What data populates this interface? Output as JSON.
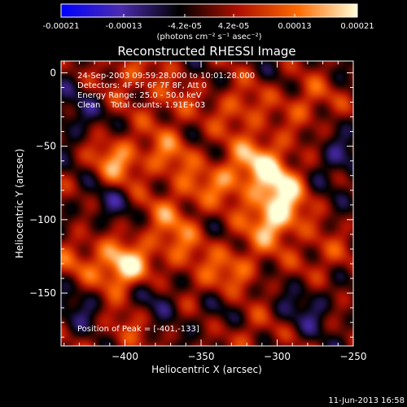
{
  "chart_data": {
    "type": "heatmap",
    "title": "Reconstructed RHESSI Image",
    "xlabel": "Heliocentric X (arcsec)",
    "ylabel": "Heliocentric Y (arcsec)",
    "xlim": [
      -442,
      -250
    ],
    "ylim": [
      -186,
      8
    ],
    "x_ticks": [
      -400,
      -350,
      -300,
      -250
    ],
    "y_ticks": [
      0,
      -50,
      -100,
      -150
    ],
    "annotations": [
      "24-Sep-2003 09:59:28.000 to 10:01:28.000",
      "Detectors: 4F 5F 6F 7F 8F, Att 0",
      "Energy Range: 25.0 - 50.0 keV",
      "Clean    Total counts: 1.91E+03"
    ],
    "peak": {
      "label": "Position of Peak = [-401,-133]",
      "x": -401,
      "y": -133
    },
    "colorbar": {
      "ticks": [
        "-0.00021",
        "-0.00013",
        "-4.2e-05",
        "4.2e-05",
        "0.00013",
        "0.00021"
      ],
      "range": [
        -0.00021,
        0.00021
      ],
      "unit": "(photons cm⁻² s⁻¹ asec⁻²)",
      "colors": [
        "#0000ff",
        "#4b2bb0",
        "#000000",
        "#b01000",
        "#ff6a00",
        "#ffffd8"
      ]
    },
    "sources": [
      {
        "x": -401,
        "y": -133,
        "value": 0.00021
      },
      {
        "x": -302,
        "y": -100,
        "value": 0.00019
      },
      {
        "x": -297,
        "y": -77,
        "value": 0.00016
      },
      {
        "x": -310,
        "y": -57,
        "value": 0.00013
      },
      {
        "x": -405,
        "y": -60,
        "value": 0.00014
      },
      {
        "x": -372,
        "y": -55,
        "value": 0.0001
      },
      {
        "x": -330,
        "y": -72,
        "value": 0.00011
      },
      {
        "x": -365,
        "y": -120,
        "value": 9e-05
      },
      {
        "x": -375,
        "y": -100,
        "value": 8e-05
      },
      {
        "x": -345,
        "y": -145,
        "value": 8e-05
      },
      {
        "x": -355,
        "y": -80,
        "value": 7e-05
      },
      {
        "x": -325,
        "y": -130,
        "value": 9e-05
      },
      {
        "x": -430,
        "y": -125,
        "value": 8e-05
      },
      {
        "x": -325,
        "y": -25,
        "value": 0.0001
      },
      {
        "x": -395,
        "y": 0,
        "value": 8e-05
      },
      {
        "x": -370,
        "y": -20,
        "value": 7e-05
      },
      {
        "x": -280,
        "y": -20,
        "value": 9e-05
      },
      {
        "x": -270,
        "y": -125,
        "value": 7e-05
      },
      {
        "x": -320,
        "y": -175,
        "value": 6e-05
      },
      {
        "x": -400,
        "y": -175,
        "value": 6e-05
      },
      {
        "x": -260,
        "y": -60,
        "value": -8e-05
      },
      {
        "x": -280,
        "y": -160,
        "value": -7e-05
      },
      {
        "x": -410,
        "y": -90,
        "value": -6e-05
      },
      {
        "x": -435,
        "y": -30,
        "value": -7e-05
      },
      {
        "x": -340,
        "y": -160,
        "value": -6e-05
      },
      {
        "x": -380,
        "y": -150,
        "value": -7e-05
      },
      {
        "x": -430,
        "y": -160,
        "value": -6e-05
      }
    ]
  },
  "footer": {
    "timestamp": "11-Jun-2013 16:58"
  }
}
